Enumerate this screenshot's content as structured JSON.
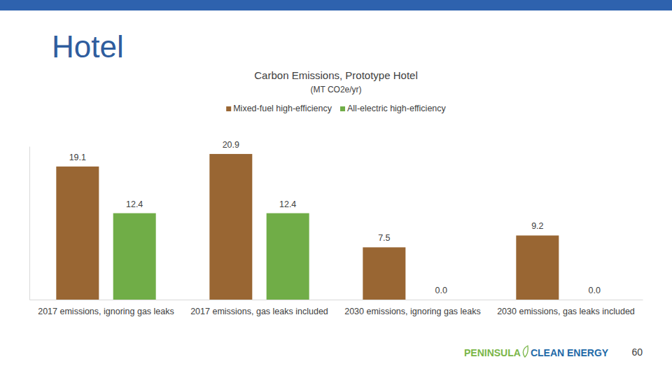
{
  "page": {
    "heading": "Hotel",
    "logo_left": "PENINSULA",
    "logo_right": "CLEAN ENERGY",
    "page_number": 60
  },
  "chart_data": {
    "type": "bar",
    "title": "Carbon Emissions, Prototype Hotel",
    "subtitle": "(MT CO2e/yr)",
    "categories": [
      "2017 emissions, ignoring gas leaks",
      "2017 emissions, gas leaks included",
      "2030 emissions, ignoring gas leaks",
      "2030 emissions, gas leaks included"
    ],
    "series": [
      {
        "name": "Mixed-fuel high-efficiency",
        "color": "#996633",
        "values": [
          19.1,
          20.9,
          7.5,
          9.2
        ],
        "value_labels": [
          "19.1",
          "20.9",
          "7.5",
          "9.2"
        ]
      },
      {
        "name": "All-electric high-efficiency",
        "color": "#70ad47",
        "values": [
          12.4,
          12.4,
          0,
          0
        ],
        "value_labels": [
          "12.4",
          "12.4",
          "0.0",
          "0.0"
        ]
      }
    ],
    "ylim": [
      0,
      22
    ],
    "legend": "top",
    "data_labels": true,
    "tick_labels": "x",
    "grid": false
  }
}
